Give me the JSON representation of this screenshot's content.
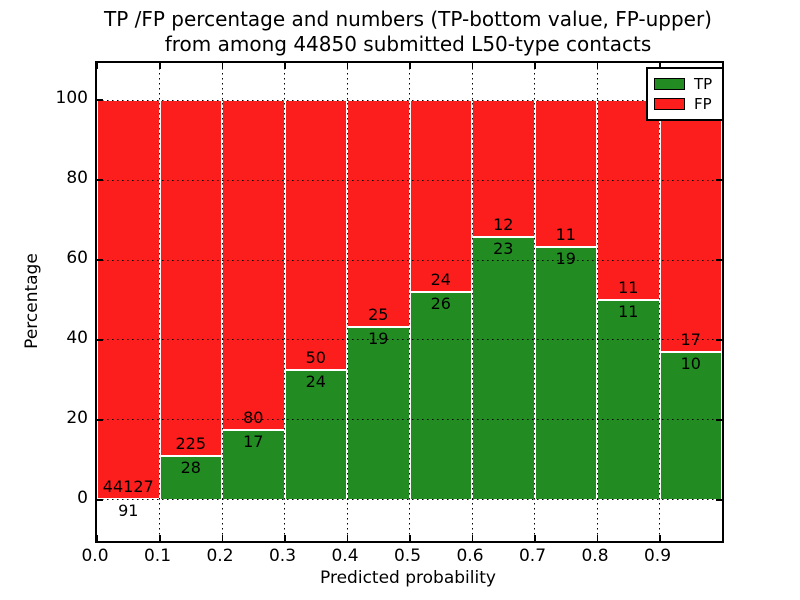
{
  "chart_data": {
    "type": "bar",
    "stacked": true,
    "title_line1": "TP /FP percentage and numbers (TP-bottom value, FP-upper)",
    "title_line2": "from among 44850 submitted L50-type contacts",
    "total_submitted_contacts": 44850,
    "xlabel": "Predicted probability",
    "ylabel": "Percentage",
    "xlim": [
      0.0,
      1.0
    ],
    "ylim": [
      -10.3,
      109.3
    ],
    "x_tick_labels": [
      "0.0",
      "0.1",
      "0.2",
      "0.3",
      "0.4",
      "0.5",
      "0.6",
      "0.7",
      "0.8",
      "0.9"
    ],
    "y_tick_values": [
      0,
      20,
      40,
      60,
      80,
      100
    ],
    "y_tick_labels": [
      "0",
      "20",
      "40",
      "60",
      "80",
      "100"
    ],
    "grid_style": "dotted",
    "legend_position": "upper-right",
    "series": [
      {
        "name": "TP",
        "color": "#228b22"
      },
      {
        "name": "FP",
        "color": "#fc1d1d"
      }
    ],
    "bin_width": 0.1,
    "bins": [
      {
        "range_start": 0.0,
        "tp": 91,
        "fp": 44127
      },
      {
        "range_start": 0.1,
        "tp": 28,
        "fp": 225
      },
      {
        "range_start": 0.2,
        "tp": 17,
        "fp": 80
      },
      {
        "range_start": 0.3,
        "tp": 24,
        "fp": 50
      },
      {
        "range_start": 0.4,
        "tp": 19,
        "fp": 25
      },
      {
        "range_start": 0.5,
        "tp": 26,
        "fp": 24
      },
      {
        "range_start": 0.6,
        "tp": 23,
        "fp": 12
      },
      {
        "range_start": 0.7,
        "tp": 19,
        "fp": 11
      },
      {
        "range_start": 0.8,
        "tp": 11,
        "fp": 11
      },
      {
        "range_start": 0.9,
        "tp": 10,
        "fp": 17
      }
    ]
  }
}
